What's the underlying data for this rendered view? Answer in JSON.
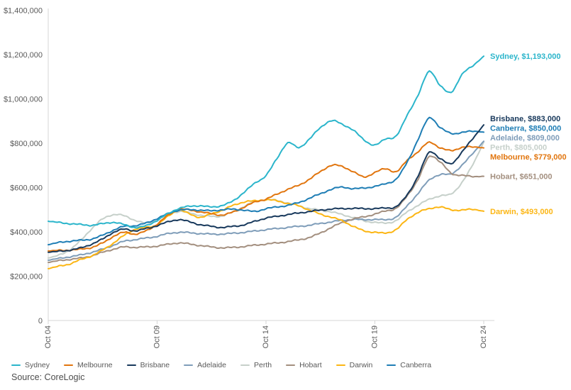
{
  "chart_data": {
    "type": "line",
    "title": "",
    "source": "Source: CoreLogic",
    "y_axis": {
      "min": 0,
      "max": 1400000,
      "tick_interval": 200000,
      "ticks": [
        {
          "label": "0",
          "value_k": 0
        },
        {
          "label": "$200,000",
          "value_k": 200
        },
        {
          "label": "$400,000",
          "value_k": 400
        },
        {
          "label": "$600,000",
          "value_k": 600
        },
        {
          "label": "$800,000",
          "value_k": 800
        },
        {
          "label": "$1,000,000",
          "value_k": 1000
        },
        {
          "label": "$1,200,000",
          "value_k": 1200
        },
        {
          "label": "$1,400,000",
          "value_k": 1400
        }
      ]
    },
    "x_axis": {
      "ticks": [
        "Oct 04",
        "Oct 09",
        "Oct 14",
        "Oct 19",
        "Oct 24"
      ],
      "range": {
        "start": "Oct 04",
        "end": "Oct 24"
      }
    },
    "sampling_note": "values_k are dwelling values in $ thousands, sampled half-yearly Oct 2004 to Oct 2024 (41 points)",
    "legend_order": [
      "Sydney",
      "Melbourne",
      "Brisbane",
      "Adelaide",
      "Perth",
      "Hobart",
      "Darwin",
      "Canberra"
    ],
    "series": [
      {
        "name": "Sydney",
        "color": "#2bb5cb",
        "final_value": 1193000,
        "end_label": "Sydney, $1,193,000",
        "values_k": [
          448,
          442,
          437,
          433,
          430,
          437,
          443,
          432,
          420,
          428,
          452,
          482,
          506,
          515,
          518,
          512,
          520,
          540,
          580,
          620,
          655,
          730,
          802,
          780,
          820,
          870,
          902,
          885,
          860,
          815,
          792,
          820,
          835,
          930,
          1020,
          1125,
          1060,
          1030,
          1110,
          1150,
          1193
        ]
      },
      {
        "name": "Melbourne",
        "color": "#e1750e",
        "final_value": 779000,
        "end_label": "Melbourne, $779,000",
        "values_k": [
          314,
          316,
          318,
          322,
          330,
          350,
          380,
          398,
          390,
          405,
          435,
          475,
          502,
          498,
          490,
          482,
          476,
          490,
          512,
          535,
          548,
          570,
          592,
          610,
          638,
          672,
          700,
          695,
          672,
          648,
          668,
          685,
          672,
          725,
          762,
          805,
          778,
          768,
          780,
          784,
          779
        ]
      },
      {
        "name": "Brisbane",
        "color": "#18395c",
        "final_value": 883000,
        "end_label": "Brisbane, $883,000",
        "values_k": [
          308,
          312,
          318,
          328,
          345,
          368,
          398,
          412,
          405,
          415,
          428,
          445,
          455,
          445,
          432,
          425,
          420,
          425,
          432,
          448,
          462,
          470,
          478,
          485,
          492,
          498,
          503,
          505,
          506,
          505,
          505,
          508,
          515,
          570,
          655,
          760,
          730,
          708,
          760,
          822,
          883
        ]
      },
      {
        "name": "Adelaide",
        "color": "#7f9db9",
        "final_value": 809000,
        "end_label": "Adelaide, $809,000",
        "values_k": [
          272,
          280,
          288,
          296,
          308,
          322,
          340,
          358,
          365,
          372,
          380,
          392,
          398,
          396,
          392,
          390,
          390,
          394,
          398,
          404,
          410,
          415,
          420,
          425,
          430,
          438,
          445,
          452,
          456,
          455,
          456,
          455,
          468,
          520,
          575,
          635,
          658,
          662,
          700,
          755,
          809
        ]
      },
      {
        "name": "Perth",
        "color": "#c6d0ca",
        "final_value": 805000,
        "end_label": "Perth, $805,000",
        "values_k": [
          282,
          295,
          320,
          362,
          415,
          458,
          478,
          472,
          452,
          440,
          452,
          478,
          492,
          485,
          475,
          470,
          472,
          492,
          515,
          538,
          545,
          542,
          530,
          518,
          505,
          498,
          490,
          478,
          465,
          450,
          443,
          440,
          452,
          492,
          520,
          548,
          562,
          572,
          622,
          705,
          805
        ]
      },
      {
        "name": "Hobart",
        "color": "#a38f7f",
        "final_value": 651000,
        "end_label": "Hobart, $651,000",
        "values_k": [
          262,
          270,
          276,
          282,
          292,
          308,
          322,
          332,
          330,
          332,
          336,
          344,
          350,
          345,
          338,
          332,
          328,
          330,
          334,
          340,
          345,
          350,
          356,
          364,
          375,
          395,
          420,
          442,
          458,
          468,
          480,
          495,
          508,
          565,
          640,
          740,
          715,
          665,
          655,
          650,
          651
        ]
      },
      {
        "name": "Darwin",
        "color": "#fcb614",
        "final_value": 493000,
        "end_label": "Darwin, $493,000",
        "values_k": [
          234,
          245,
          256,
          275,
          292,
          318,
          350,
          385,
          412,
          420,
          432,
          470,
          498,
          480,
          466,
          482,
          498,
          520,
          535,
          540,
          545,
          540,
          528,
          518,
          498,
          480,
          466,
          450,
          425,
          405,
          398,
          395,
          412,
          458,
          488,
          505,
          512,
          500,
          498,
          502,
          493
        ]
      },
      {
        "name": "Canberra",
        "color": "#1f7eb5",
        "final_value": 850000,
        "end_label": "Canberra, $850,000",
        "values_k": [
          342,
          352,
          358,
          362,
          368,
          385,
          408,
          425,
          428,
          440,
          460,
          482,
          498,
          500,
          498,
          495,
          500,
          502,
          498,
          492,
          505,
          512,
          520,
          532,
          552,
          572,
          592,
          602,
          595,
          598,
          605,
          618,
          640,
          718,
          820,
          915,
          870,
          845,
          848,
          855,
          850
        ]
      }
    ],
    "style": {
      "axis_color": "#d6d6d6",
      "label_color": "#595959"
    }
  }
}
